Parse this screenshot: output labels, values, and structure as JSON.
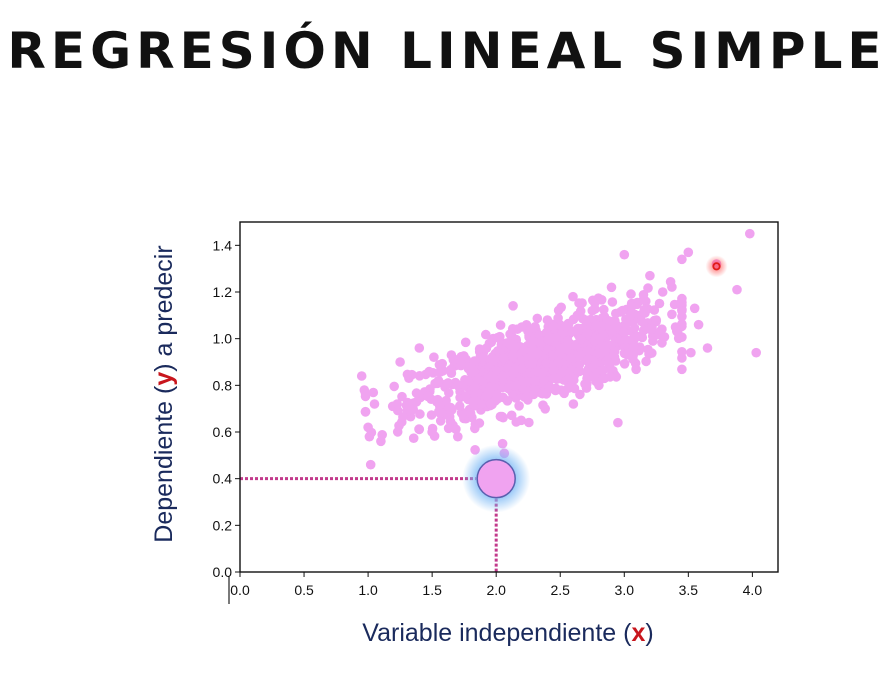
{
  "slide": {
    "title": "REGRESIÓN LINEAL SIMPLE"
  },
  "colors": {
    "points": "#f0a3f0",
    "axis_label": "#1a2a5c",
    "variable_letter": "#c8161d",
    "guide_line": "#c23a8c",
    "highlight_glow": "#7ab8f5",
    "outlier_marker": "#e01a1a"
  },
  "chart_data": {
    "type": "scatter",
    "xlim": [
      0,
      4.2
    ],
    "ylim": [
      0,
      1.5
    ],
    "x_ticks": [
      0.0,
      0.5,
      1.0,
      1.5,
      2.0,
      2.5,
      3.0,
      3.5,
      4.0
    ],
    "y_ticks": [
      0.0,
      0.2,
      0.4,
      0.6,
      0.8,
      1.0,
      1.2,
      1.4
    ],
    "x_tick_labels": [
      "0.0",
      "0.5",
      "1.0",
      "1.5",
      "2.0",
      "2.5",
      "3.0",
      "3.5",
      "4.0"
    ],
    "y_tick_labels": [
      "0.0",
      "0.2",
      "0.4",
      "0.6",
      "0.8",
      "1.0",
      "1.2",
      "1.4"
    ],
    "xlabel": {
      "prefix": "Variable independiente (",
      "var": "x",
      "suffix": ")"
    },
    "ylabel": {
      "prefix": "Dependiente (",
      "var": "y",
      "suffix": ") a predecir"
    },
    "grid": false,
    "sample_description": "approximately 1000 points around the line y = 0.5 + 0.17·x, x mostly between 0.95 and 3.5",
    "points_sample": [
      [
        0.95,
        0.84
      ],
      [
        0.97,
        0.78
      ],
      [
        1.0,
        0.62
      ],
      [
        1.01,
        0.58
      ],
      [
        1.02,
        0.46
      ],
      [
        1.05,
        0.72
      ],
      [
        1.1,
        0.56
      ],
      [
        1.25,
        0.9
      ],
      [
        1.4,
        0.96
      ],
      [
        1.5,
        0.6
      ],
      [
        1.55,
        0.82
      ],
      [
        1.65,
        0.93
      ],
      [
        1.7,
        0.58
      ],
      [
        1.8,
        0.68
      ],
      [
        1.9,
        0.92
      ],
      [
        2.0,
        0.74
      ],
      [
        2.05,
        0.55
      ],
      [
        2.1,
        0.98
      ],
      [
        2.2,
        1.05
      ],
      [
        2.3,
        0.82
      ],
      [
        2.4,
        1.08
      ],
      [
        2.5,
        0.94
      ],
      [
        2.6,
        1.18
      ],
      [
        2.65,
        0.86
      ],
      [
        2.75,
        1.12
      ],
      [
        2.8,
        0.94
      ],
      [
        2.9,
        1.22
      ],
      [
        2.95,
        0.64
      ],
      [
        3.0,
        1.36
      ],
      [
        3.05,
        1.1
      ],
      [
        3.1,
        1.01
      ],
      [
        3.2,
        1.27
      ],
      [
        3.25,
        1.08
      ],
      [
        3.3,
        1.2
      ],
      [
        3.4,
        1.05
      ],
      [
        3.45,
        1.34
      ],
      [
        3.5,
        1.37
      ],
      [
        3.52,
        0.94
      ],
      [
        3.55,
        1.13
      ],
      [
        3.58,
        1.06
      ],
      [
        3.65,
        0.96
      ],
      [
        3.72,
        1.32
      ],
      [
        3.88,
        1.21
      ],
      [
        3.98,
        1.45
      ],
      [
        4.03,
        0.94
      ]
    ],
    "highlighted_point": {
      "x": 2.0,
      "y": 0.4
    },
    "outlier_marker": {
      "x": 3.72,
      "y": 1.31
    }
  }
}
